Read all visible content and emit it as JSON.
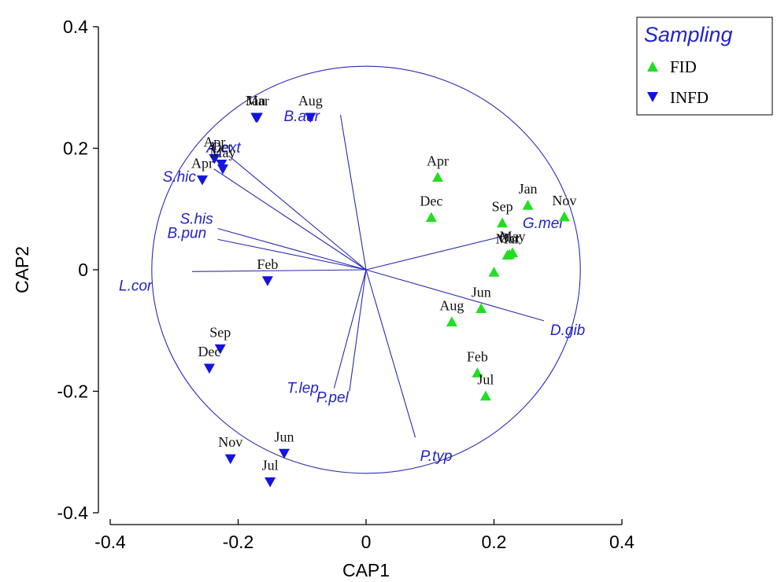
{
  "chart_data": {
    "type": "scatter",
    "xlabel": "CAP1",
    "ylabel": "CAP2",
    "xlim": [
      -0.4,
      0.4
    ],
    "ylim": [
      -0.4,
      0.4
    ],
    "xticks": [
      "-0.4",
      "-0.2",
      "0",
      "0.2",
      "0.4"
    ],
    "yticks": [
      "0.4",
      "0.2",
      "0",
      "-0.2",
      "-0.4"
    ],
    "legend": {
      "title": "Sampling",
      "position": "top-right",
      "entries": [
        {
          "name": "FID",
          "marker": "triangle-up",
          "color": "#22dd22"
        },
        {
          "name": "INFD",
          "marker": "triangle-down",
          "color": "#1414e0"
        }
      ]
    },
    "series": [
      {
        "name": "FID",
        "marker": "triangle-up",
        "color": "#22dd22",
        "points": [
          {
            "x": 0.112,
            "y": 0.152,
            "label": "Apr"
          },
          {
            "x": 0.102,
            "y": 0.086,
            "label": "Dec"
          },
          {
            "x": 0.253,
            "y": 0.106,
            "label": "Jan"
          },
          {
            "x": 0.31,
            "y": 0.087,
            "label": "Nov"
          },
          {
            "x": 0.213,
            "y": 0.077,
            "label": "Sep"
          },
          {
            "x": 0.229,
            "y": 0.028,
            "label": "May"
          },
          {
            "x": 0.224,
            "y": 0.025,
            "label": "Oct"
          },
          {
            "x": 0.221,
            "y": 0.024,
            "label": "Mar"
          },
          {
            "x": 0.2,
            "y": -0.004,
            "label": ""
          },
          {
            "x": 0.18,
            "y": -0.064,
            "label": "Jun"
          },
          {
            "x": 0.134,
            "y": -0.086,
            "label": "Aug"
          },
          {
            "x": 0.174,
            "y": -0.17,
            "label": "Feb"
          },
          {
            "x": 0.187,
            "y": -0.208,
            "label": "Jul"
          }
        ]
      },
      {
        "name": "INFD",
        "marker": "triangle-down",
        "color": "#1414e0",
        "points": [
          {
            "x": -0.172,
            "y": 0.251,
            "label": "Jan"
          },
          {
            "x": -0.17,
            "y": 0.251,
            "label": "Mar"
          },
          {
            "x": -0.087,
            "y": 0.251,
            "label": "Aug"
          },
          {
            "x": -0.237,
            "y": 0.183,
            "label": "Apr"
          },
          {
            "x": -0.226,
            "y": 0.174,
            "label": "Oct"
          },
          {
            "x": -0.224,
            "y": 0.166,
            "label": "May"
          },
          {
            "x": -0.256,
            "y": 0.148,
            "label": "Apr"
          },
          {
            "x": -0.154,
            "y": -0.018,
            "label": "Feb"
          },
          {
            "x": -0.228,
            "y": -0.13,
            "label": "Sep"
          },
          {
            "x": -0.245,
            "y": -0.162,
            "label": "Dec"
          },
          {
            "x": -0.212,
            "y": -0.311,
            "label": "Nov"
          },
          {
            "x": -0.128,
            "y": -0.302,
            "label": "Jun"
          },
          {
            "x": -0.15,
            "y": -0.349,
            "label": "Jul"
          }
        ]
      }
    ],
    "vectors": [
      {
        "label": "B.aur",
        "x": -0.04,
        "y": 0.255
      },
      {
        "label": "A.ext",
        "x": -0.215,
        "y": 0.188
      },
      {
        "label": "S.hic",
        "x": -0.238,
        "y": 0.166
      },
      {
        "label": "S.his",
        "x": -0.232,
        "y": 0.068
      },
      {
        "label": "B.pun",
        "x": -0.232,
        "y": 0.05
      },
      {
        "label": "L.cor",
        "x": -0.272,
        "y": -0.003
      },
      {
        "label": "G.mel",
        "x": 0.225,
        "y": 0.058
      },
      {
        "label": "D.gib",
        "x": 0.278,
        "y": -0.084
      },
      {
        "label": "T.lep",
        "x": -0.05,
        "y": -0.195
      },
      {
        "label": "P.pel",
        "x": -0.026,
        "y": -0.2
      },
      {
        "label": "P.typ",
        "x": 0.077,
        "y": -0.276
      }
    ],
    "circle_radius": 0.335,
    "grid": false
  }
}
